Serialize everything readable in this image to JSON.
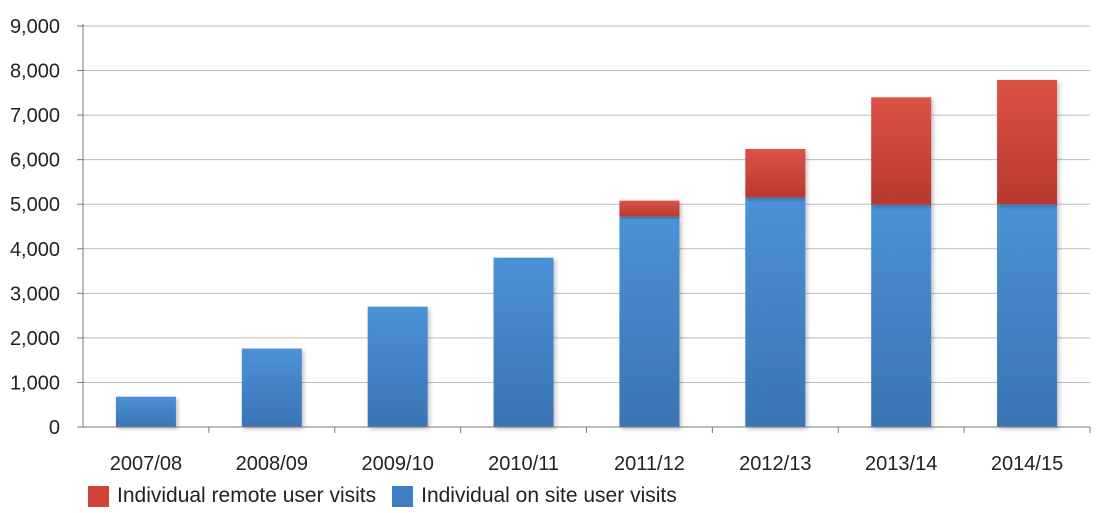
{
  "chart_data": {
    "type": "bar",
    "stacked": true,
    "categories": [
      "2007/08",
      "2008/09",
      "2009/10",
      "2010/11",
      "2011/12",
      "2012/13",
      "2013/14",
      "2014/15"
    ],
    "series": [
      {
        "name": "Individual on site user visits",
        "color": "#3f7fc1",
        "values": [
          680,
          1760,
          2700,
          3800,
          4720,
          5150,
          4990,
          5000
        ]
      },
      {
        "name": "Individual remote user visits",
        "color": "#d0443a",
        "values": [
          0,
          0,
          0,
          0,
          360,
          1090,
          2410,
          2790
        ]
      }
    ],
    "ylim": [
      0,
      9000
    ],
    "yticks": [
      "0",
      "1,000",
      "2,000",
      "3,000",
      "4,000",
      "5,000",
      "6,000",
      "7,000",
      "8,000",
      "9,000"
    ],
    "grid": true,
    "legend_position": "bottom",
    "legend": [
      "Individual remote user visits",
      "Individual on site user visits"
    ],
    "title": "",
    "xlabel": "",
    "ylabel": ""
  }
}
